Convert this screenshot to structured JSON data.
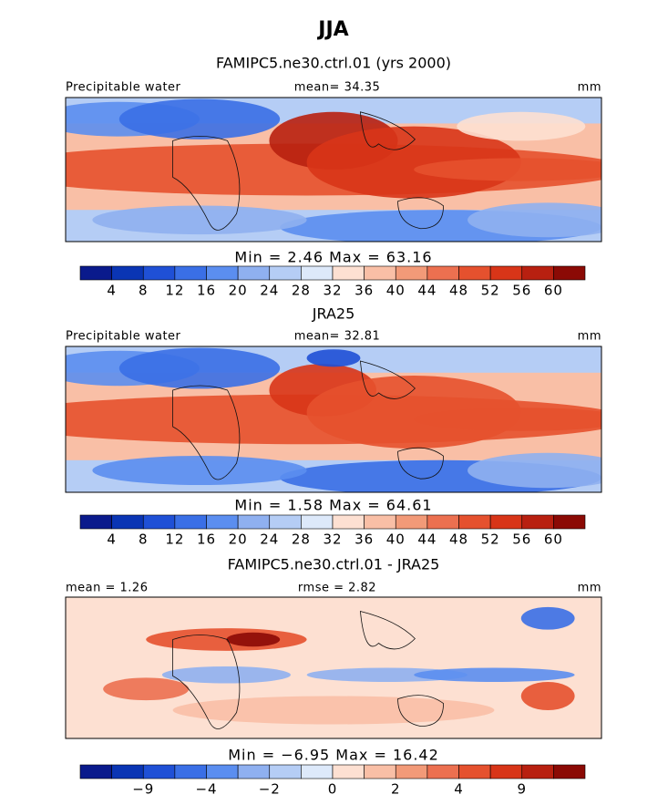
{
  "title": "JJA",
  "colors": [
    "#0a1a8c",
    "#0a35b4",
    "#1f50d6",
    "#3a6fe6",
    "#5b8ef0",
    "#8fb0f0",
    "#b5cdf5",
    "#dde9fa",
    "#fde0d2",
    "#f9bfa6",
    "#f29a78",
    "#ec7050",
    "#e5512e",
    "#d83518",
    "#b82010",
    "#8b0a05"
  ],
  "panels": [
    {
      "title": "FAMIPC5.ne30.ctrl.01 (yrs 2000)",
      "left": "Precipitable water",
      "center": "mean=  34.35",
      "right": "mm",
      "minmax": "Min =    2.46 Max =   63.16",
      "colorbar": [
        "4",
        "8",
        "12",
        "16",
        "20",
        "24",
        "28",
        "32",
        "36",
        "40",
        "44",
        "48",
        "52",
        "56",
        "60"
      ]
    },
    {
      "title": "JRA25",
      "left": "Precipitable water",
      "center": "mean=  32.81",
      "right": "mm",
      "minmax": "Min =    1.58 Max =   64.61",
      "colorbar": [
        "4",
        "8",
        "12",
        "16",
        "20",
        "24",
        "28",
        "32",
        "36",
        "40",
        "44",
        "48",
        "52",
        "56",
        "60"
      ]
    },
    {
      "title": "FAMIPC5.ne30.ctrl.01 - JRA25",
      "left": "mean =    1.26",
      "center": "rmse =   2.82",
      "right": "mm",
      "minmax": "Min =   −6.95 Max =   16.42",
      "colorbar": [
        "−9",
        "−4",
        "−2",
        "0",
        "2",
        "4",
        "9"
      ]
    }
  ]
}
